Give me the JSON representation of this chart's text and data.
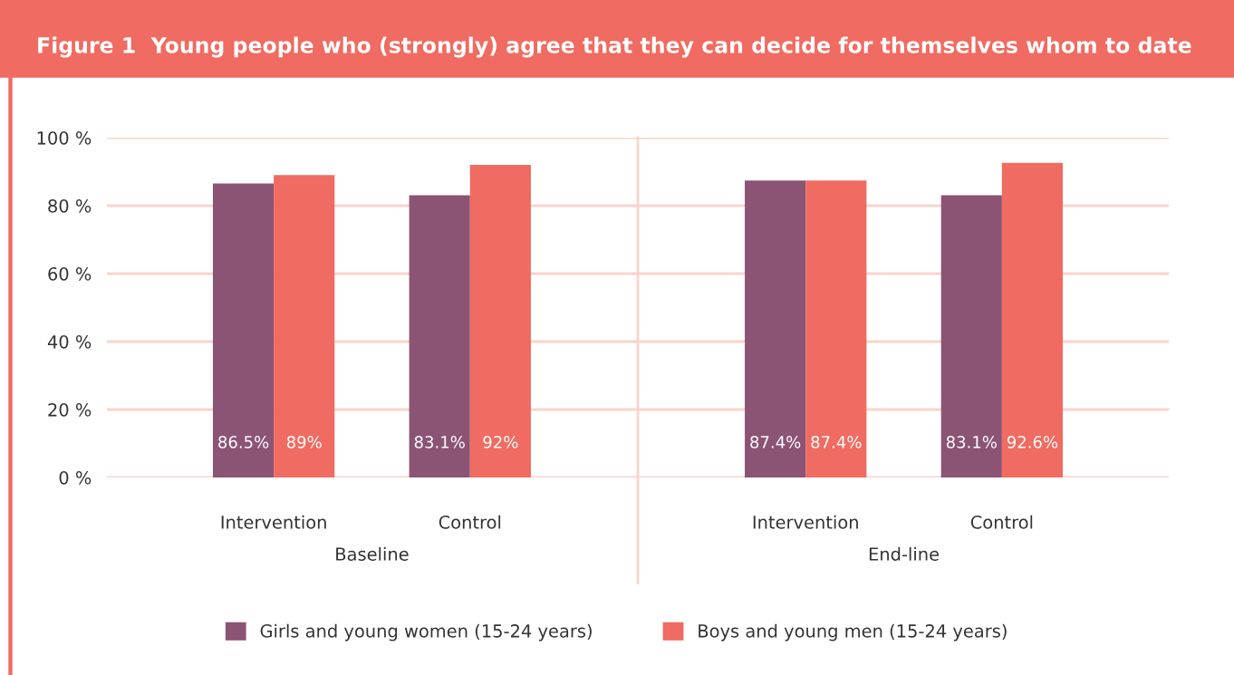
{
  "chart_data": {
    "type": "bar",
    "title": "Figure 1  Young people who (strongly) agree that they can decide for themselves whom to date",
    "categories": [
      "Intervention",
      "Control",
      "Intervention",
      "Control"
    ],
    "series": [
      {
        "name": "Girls and young women (15-24 years)",
        "color": "#8b5374",
        "values": [
          86.5,
          83.1,
          87.4,
          83.1
        ],
        "value_labels": [
          "86.5%",
          "83.1%",
          "87.4%",
          "83.1%"
        ]
      },
      {
        "name": "Boys and young men (15-24 years)",
        "color": "#f06b61",
        "values": [
          89,
          92,
          87.4,
          92.6
        ],
        "value_labels": [
          "89%",
          "92%",
          "87.4%",
          "92.6%"
        ]
      }
    ],
    "annotations": [
      "Baseline",
      "End-line"
    ],
    "ylim": [
      0,
      100
    ],
    "yticks": [
      {
        "value": 0,
        "label": "0 %"
      },
      {
        "value": 20,
        "label": "20 %"
      },
      {
        "value": 40,
        "label": "40 %"
      },
      {
        "value": 60,
        "label": "60 %"
      },
      {
        "value": 80,
        "label": "80 %"
      },
      {
        "value": 100,
        "label": "100 %"
      }
    ],
    "grid": "y",
    "legend": "bottom"
  }
}
